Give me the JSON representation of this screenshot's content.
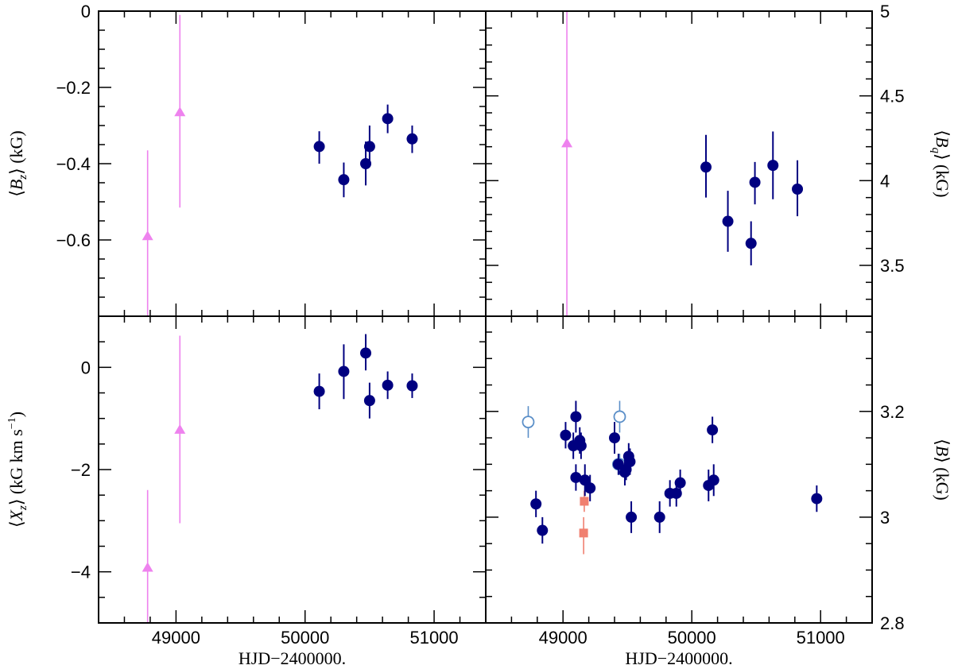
{
  "chart_data": [
    {
      "panel": "top-left",
      "type": "scatter",
      "xlabel": "",
      "ylabel": "⟨Bz⟩ (kG)",
      "ylabel_parts": {
        "main": "B",
        "sub": "z",
        "unit": "(kG)"
      },
      "xlim": [
        48400,
        51400
      ],
      "ylim": [
        -0.8,
        0.0
      ],
      "y_ticks": [
        0,
        -0.2,
        -0.4,
        -0.6
      ],
      "y_tick_labels": [
        "0",
        "−0.2",
        "−0.4",
        "−0.6"
      ],
      "series": [
        {
          "name": "triangles",
          "marker": "triangle",
          "color": "#ee82ee",
          "x": [
            48780,
            49030
          ],
          "y": [
            -0.59,
            -0.265
          ],
          "err": [
            [
              -0.81,
              -0.365
            ],
            [
              -0.515,
              -0.01
            ]
          ]
        },
        {
          "name": "circles",
          "marker": "circle",
          "color": "#000080",
          "x": [
            50110,
            50300,
            50470,
            50500,
            50640,
            50830
          ],
          "y": [
            -0.355,
            -0.442,
            -0.4,
            -0.355,
            -0.282,
            -0.335
          ],
          "err": [
            [
              -0.4,
              -0.315
            ],
            [
              -0.488,
              -0.397
            ],
            [
              -0.457,
              -0.342
            ],
            [
              -0.4,
              -0.3
            ],
            [
              -0.32,
              -0.245
            ],
            [
              -0.372,
              -0.3
            ]
          ]
        }
      ]
    },
    {
      "panel": "top-right",
      "type": "scatter",
      "xlabel": "",
      "ylabel": "⟨Bq⟩ (kG)",
      "ylabel_parts": {
        "main": "B",
        "sub": "q",
        "unit": "(kG)"
      },
      "xlim": [
        48400,
        51400
      ],
      "ylim": [
        3.2,
        5.0
      ],
      "y_ticks": [
        5,
        4.5,
        4,
        3.5
      ],
      "y_tick_labels": [
        "5",
        "4.5",
        "4",
        "3.5"
      ],
      "series": [
        {
          "name": "triangles",
          "marker": "triangle",
          "color": "#ee82ee",
          "x": [
            49030
          ],
          "y": [
            4.22
          ],
          "err": [
            [
              3.2,
              5.0
            ]
          ]
        },
        {
          "name": "circles",
          "marker": "circle",
          "color": "#000080",
          "x": [
            50110,
            50280,
            50460,
            50490,
            50630,
            50820
          ],
          "y": [
            4.08,
            3.76,
            3.63,
            3.99,
            4.09,
            3.95
          ],
          "err": [
            [
              3.9,
              4.27
            ],
            [
              3.58,
              3.94
            ],
            [
              3.5,
              3.76
            ],
            [
              3.86,
              4.11
            ],
            [
              3.89,
              4.29
            ],
            [
              3.79,
              4.12
            ]
          ]
        }
      ]
    },
    {
      "panel": "bottom-left",
      "type": "scatter",
      "xlabel": "HJD−2400000.",
      "ylabel": "⟨Xz⟩ (kG km s−1)",
      "ylabel_parts": {
        "main": "X",
        "sub": "z",
        "unit": "(kG km s",
        "unit_sup": "−1",
        "unit_end": ")"
      },
      "xlim": [
        48400,
        51400
      ],
      "ylim": [
        -5.0,
        1.0
      ],
      "y_ticks": [
        0,
        -2,
        -4
      ],
      "y_tick_labels": [
        "0",
        "−2",
        "−4"
      ],
      "x_ticks": [
        49000,
        50000,
        51000
      ],
      "x_tick_labels": [
        "49000",
        "50000",
        "51000"
      ],
      "series": [
        {
          "name": "triangles",
          "marker": "triangle",
          "color": "#ee82ee",
          "x": [
            48780,
            49030
          ],
          "y": [
            -3.92,
            -1.22
          ],
          "err": [
            [
              -5.0,
              -2.4
            ],
            [
              -3.05,
              0.62
            ]
          ]
        },
        {
          "name": "circles",
          "marker": "circle",
          "color": "#000080",
          "x": [
            50110,
            50300,
            50470,
            50500,
            50640,
            50830
          ],
          "y": [
            -0.47,
            -0.08,
            0.28,
            -0.65,
            -0.35,
            -0.36
          ],
          "err": [
            [
              -0.82,
              -0.12
            ],
            [
              -0.62,
              0.45
            ],
            [
              -0.06,
              0.65
            ],
            [
              -1.0,
              -0.3
            ],
            [
              -0.62,
              -0.08
            ],
            [
              -0.6,
              -0.12
            ]
          ]
        }
      ]
    },
    {
      "panel": "bottom-right",
      "type": "scatter",
      "xlabel": "HJD−2400000.",
      "ylabel": "⟨B⟩ (kG)",
      "ylabel_parts": {
        "main": "B",
        "sub": "",
        "unit": "(kG)"
      },
      "xlim": [
        48400,
        51400
      ],
      "ylim": [
        2.8,
        3.38
      ],
      "y_ticks": [
        3.2,
        3.0,
        2.8
      ],
      "y_tick_labels": [
        "3.2",
        "3",
        "2.8"
      ],
      "x_ticks": [
        49000,
        50000,
        51000
      ],
      "x_tick_labels": [
        "49000",
        "50000",
        "51000"
      ],
      "series": [
        {
          "name": "open circles",
          "marker": "open-circle",
          "color": "#5b8fc8",
          "x": [
            48730,
            49440,
            49430,
            49440
          ],
          "y": [
            3.18,
            3.19,
            3.1,
            3.1
          ],
          "err": [
            [
              3.15,
              3.21
            ],
            [
              3.16,
              3.22
            ],
            [
              3.08,
              3.12
            ],
            [
              3.08,
              3.12
            ]
          ]
        },
        {
          "name": "squares",
          "marker": "square",
          "color": "#f08070",
          "x": [
            49165,
            49160
          ],
          "y": [
            3.03,
            2.97
          ],
          "err": [
            [
              3.01,
              3.05
            ],
            [
              2.93,
              3.0
            ]
          ]
        },
        {
          "name": "circles",
          "marker": "circle",
          "color": "#000080",
          "x": [
            48790,
            48840,
            49020,
            49080,
            49100,
            49100,
            49130,
            49140,
            49170,
            49210,
            49400,
            49430,
            49480,
            49490,
            49510,
            49520,
            49530,
            49750,
            49830,
            49880,
            49910,
            50130,
            50160,
            50170,
            50970
          ],
          "y": [
            3.025,
            2.975,
            3.155,
            3.135,
            3.19,
            3.075,
            3.145,
            3.135,
            3.07,
            3.055,
            3.15,
            3.1,
            3.085,
            3.09,
            3.115,
            3.105,
            3.0,
            3.0,
            3.045,
            3.045,
            3.065,
            3.06,
            3.165,
            3.07,
            3.035
          ],
          "err": [
            [
              3.0,
              3.05
            ],
            [
              2.95,
              3.0
            ],
            [
              3.13,
              3.18
            ],
            [
              3.11,
              3.16
            ],
            [
              3.16,
              3.22
            ],
            [
              3.05,
              3.1
            ],
            [
              3.12,
              3.17
            ],
            [
              3.11,
              3.16
            ],
            [
              3.04,
              3.1
            ],
            [
              3.03,
              3.08
            ],
            [
              3.12,
              3.18
            ],
            [
              3.08,
              3.12
            ],
            [
              3.06,
              3.11
            ],
            [
              3.07,
              3.11
            ],
            [
              3.09,
              3.14
            ],
            [
              3.08,
              3.13
            ],
            [
              2.97,
              3.03
            ],
            [
              2.97,
              3.03
            ],
            [
              3.02,
              3.07
            ],
            [
              3.02,
              3.07
            ],
            [
              3.04,
              3.09
            ],
            [
              3.03,
              3.09
            ],
            [
              3.14,
              3.19
            ],
            [
              3.04,
              3.1
            ],
            [
              3.01,
              3.06
            ]
          ]
        }
      ]
    }
  ]
}
